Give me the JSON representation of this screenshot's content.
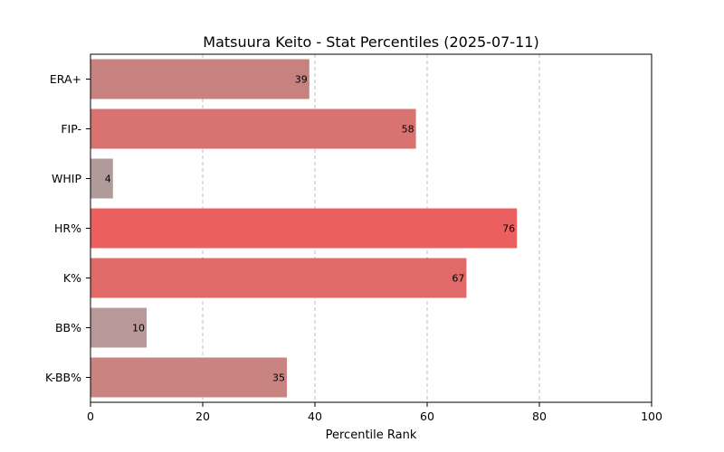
{
  "chart_data": {
    "type": "bar",
    "orientation": "horizontal",
    "title": "Matsuura Keito - Stat Percentiles (2025-07-11)",
    "xlabel": "Percentile Rank",
    "ylabel": "",
    "xlim": [
      0,
      100
    ],
    "xticks": [
      0,
      20,
      40,
      60,
      80,
      100
    ],
    "grid": "vertical dashed",
    "categories": [
      "ERA+",
      "FIP-",
      "WHIP",
      "HR%",
      "K%",
      "BB%",
      "K-BB%"
    ],
    "values": [
      39,
      58,
      4,
      76,
      67,
      10,
      35
    ],
    "colors": [
      "#c7827f",
      "#d97371",
      "#b09a9a",
      "#ec5f5f",
      "#e06a68",
      "#b89898",
      "#c98481"
    ]
  }
}
